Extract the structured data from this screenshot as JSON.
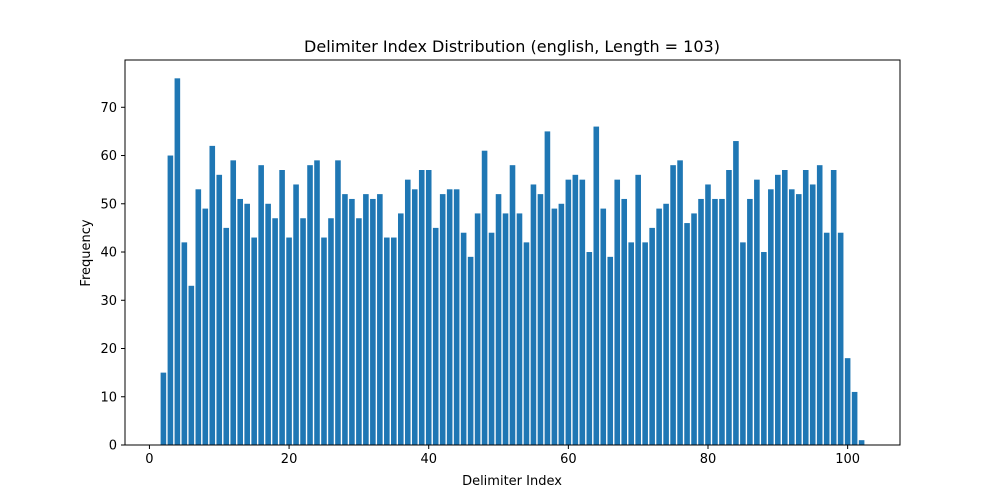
{
  "chart_data": {
    "type": "bar",
    "title": "Delimiter Index Distribution (english, Length = 103)",
    "xlabel": "Delimiter Index",
    "ylabel": "Frequency",
    "x": [
      2,
      3,
      4,
      5,
      6,
      7,
      8,
      9,
      10,
      11,
      12,
      13,
      14,
      15,
      16,
      17,
      18,
      19,
      20,
      21,
      22,
      23,
      24,
      25,
      26,
      27,
      28,
      29,
      30,
      31,
      32,
      33,
      34,
      35,
      36,
      37,
      38,
      39,
      40,
      41,
      42,
      43,
      44,
      45,
      46,
      47,
      48,
      49,
      50,
      51,
      52,
      53,
      54,
      55,
      56,
      57,
      58,
      59,
      60,
      61,
      62,
      63,
      64,
      65,
      66,
      67,
      68,
      69,
      70,
      71,
      72,
      73,
      74,
      75,
      76,
      77,
      78,
      79,
      80,
      81,
      82,
      83,
      84,
      85,
      86,
      87,
      88,
      89,
      90,
      91,
      92,
      93,
      94,
      95,
      96,
      97,
      98,
      99,
      100,
      101,
      102
    ],
    "values": [
      15,
      60,
      76,
      42,
      33,
      53,
      49,
      62,
      56,
      45,
      59,
      51,
      50,
      43,
      58,
      50,
      47,
      57,
      43,
      54,
      47,
      58,
      59,
      43,
      47,
      59,
      52,
      51,
      47,
      52,
      51,
      52,
      43,
      43,
      48,
      55,
      53,
      57,
      57,
      45,
      52,
      53,
      53,
      44,
      39,
      48,
      61,
      44,
      52,
      48,
      58,
      48,
      42,
      54,
      52,
      65,
      49,
      50,
      55,
      56,
      55,
      40,
      66,
      49,
      39,
      55,
      51,
      42,
      56,
      42,
      45,
      49,
      50,
      58,
      59,
      46,
      48,
      51,
      54,
      51,
      51,
      57,
      63,
      42,
      51,
      55,
      40,
      53,
      56,
      57,
      53,
      52,
      57,
      54,
      58,
      44,
      57,
      44,
      18,
      11,
      1
    ],
    "xlim": [
      -3.5,
      107.5
    ],
    "ylim": [
      0,
      79.8
    ],
    "xticks": [
      0,
      20,
      40,
      60,
      80,
      100
    ],
    "yticks": [
      0,
      10,
      20,
      30,
      40,
      50,
      60,
      70
    ],
    "bar_color": "#1f77b4",
    "grid": false,
    "legend": "none"
  }
}
